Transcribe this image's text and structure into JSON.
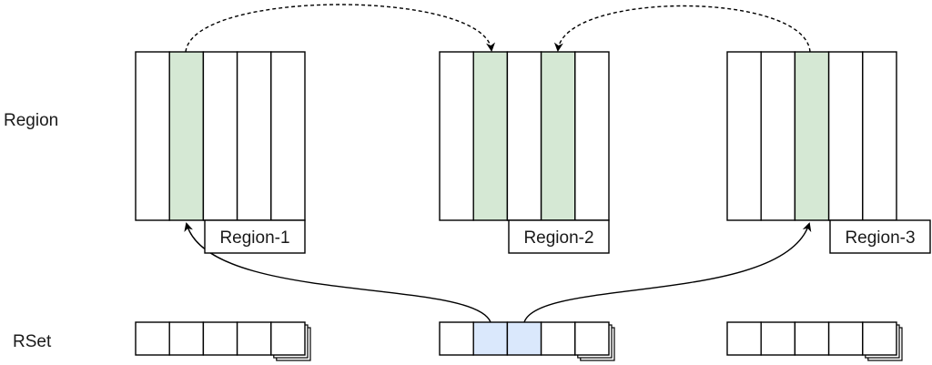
{
  "row_labels": {
    "region": "Region",
    "rset": "RSet"
  },
  "regions": [
    {
      "name": "Region-1",
      "cells": 5,
      "highlighted": [
        1
      ]
    },
    {
      "name": "Region-2",
      "cells": 5,
      "highlighted": [
        1,
        3
      ]
    },
    {
      "name": "Region-3",
      "cells": 5,
      "highlighted": [
        2
      ]
    }
  ],
  "rsets": [
    {
      "cells": 5,
      "highlighted": []
    },
    {
      "cells": 5,
      "highlighted": [
        1,
        2
      ]
    },
    {
      "cells": 5,
      "highlighted": []
    }
  ],
  "colors": {
    "region_highlight": "#d5e8d4",
    "rset_highlight": "#dae8fc",
    "stroke": "#000000",
    "background": "#ffffff"
  }
}
